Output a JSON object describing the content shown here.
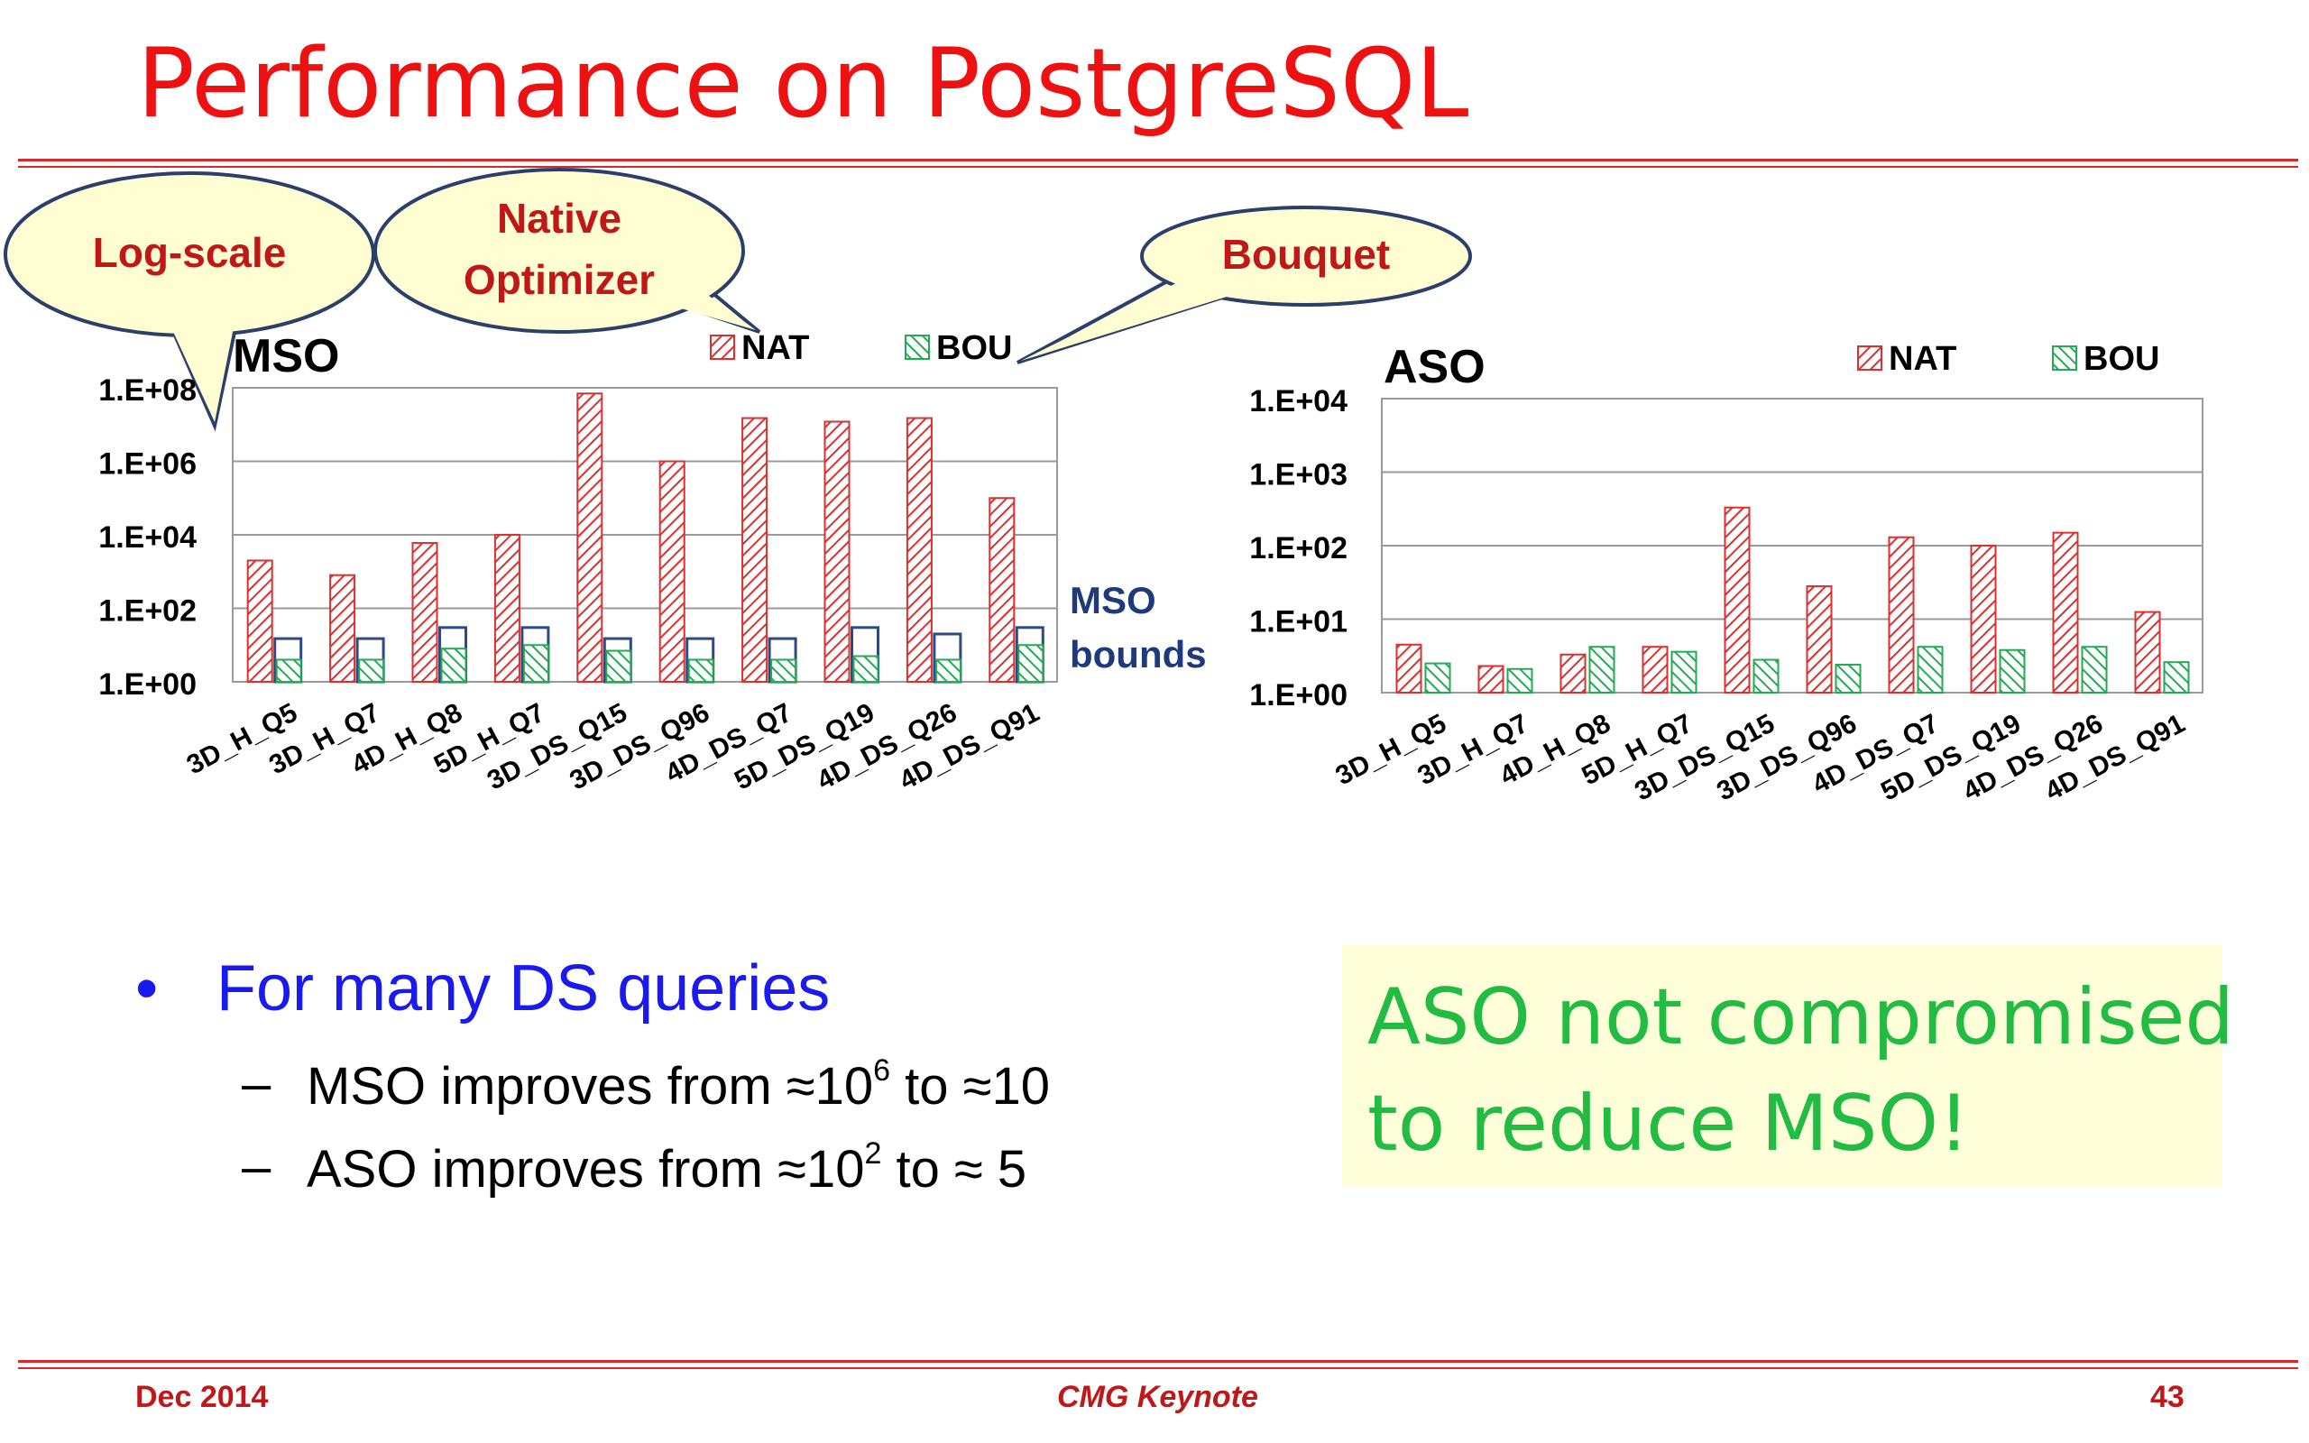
{
  "title": "Performance on PostgreSQL",
  "callouts": {
    "log_scale": "Log-scale",
    "native_line1": "Native",
    "native_line2": "Optimizer",
    "bouquet": "Bouquet"
  },
  "bounds_label": {
    "line1": "MSO",
    "line2": "bounds"
  },
  "chart_data": [
    {
      "type": "bar",
      "title": "MSO",
      "scale": "log",
      "ylim": [
        1,
        100000000
      ],
      "yticks": [
        "1.E+00",
        "1.E+02",
        "1.E+04",
        "1.E+06",
        "1.E+08"
      ],
      "categories": [
        "3D_H_Q5",
        "3D_H_Q7",
        "4D_H_Q8",
        "5D_H_Q7",
        "3D_DS_Q15",
        "3D_DS_Q96",
        "4D_DS_Q7",
        "5D_DS_Q19",
        "4D_DS_Q26",
        "4D_DS_Q91"
      ],
      "series": [
        {
          "name": "NAT",
          "values": [
            2000,
            800,
            6000,
            10000,
            70000000,
            1000000,
            15000000,
            12000000,
            15000000,
            100000
          ]
        },
        {
          "name": "BOU",
          "values": [
            4,
            4,
            8,
            10,
            7,
            4,
            4,
            5,
            4,
            10
          ]
        },
        {
          "name": "MSO bounds",
          "values": [
            15,
            15,
            30,
            30,
            15,
            15,
            15,
            30,
            20,
            30
          ]
        }
      ],
      "legend": "top",
      "grid": true,
      "colors": {
        "NAT": "#d93030",
        "BOU": "#22aa55",
        "MSO bounds": "#2e4a86"
      }
    },
    {
      "type": "bar",
      "title": "ASO",
      "scale": "log",
      "ylim": [
        1,
        10000
      ],
      "yticks": [
        "1.E+00",
        "1.E+01",
        "1.E+02",
        "1.E+03",
        "1.E+04"
      ],
      "categories": [
        "3D_H_Q5",
        "3D_H_Q7",
        "4D_H_Q8",
        "5D_H_Q7",
        "3D_DS_Q15",
        "3D_DS_Q96",
        "4D_DS_Q7",
        "5D_DS_Q19",
        "4D_DS_Q26",
        "4D_DS_Q91"
      ],
      "series": [
        {
          "name": "NAT",
          "values": [
            4.5,
            2.3,
            3.3,
            4.2,
            330,
            28,
            130,
            100,
            150,
            12.5
          ]
        },
        {
          "name": "BOU",
          "values": [
            2.5,
            2.1,
            4.2,
            3.6,
            2.8,
            2.4,
            4.2,
            3.8,
            4.2,
            2.6
          ]
        }
      ],
      "legend": "top",
      "grid": true,
      "colors": {
        "NAT": "#d93030",
        "BOU": "#22aa55"
      }
    }
  ],
  "bullets": {
    "main": "For many DS queries",
    "sub1_pre": "MSO improves from ≈10",
    "sub1_exp": "6",
    "sub1_post": " to ≈10",
    "sub2_pre": "ASO improves from ≈10",
    "sub2_exp": "2",
    "sub2_post": " to ≈ 5"
  },
  "highlight": {
    "line1": "ASO not compromised",
    "line2": "to reduce MSO!"
  },
  "footer": {
    "left": "Dec 2014",
    "center": "CMG Keynote",
    "right": "43"
  }
}
